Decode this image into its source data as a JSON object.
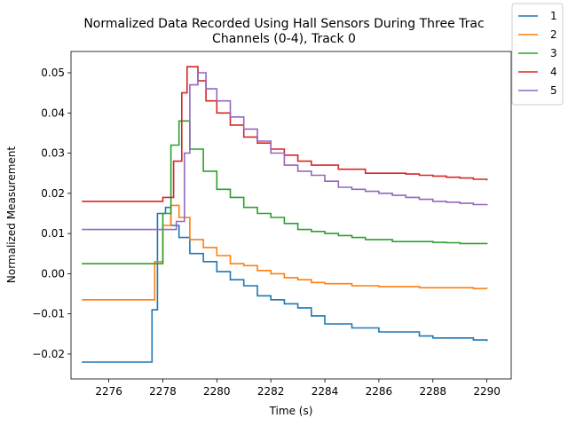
{
  "chart_data": {
    "type": "line",
    "title": "Normalized Data Recorded Using Hall Sensors During Three Trac",
    "subtitle": "Channels (0-4), Track 0",
    "xlabel": "Time (s)",
    "ylabel": "Normalized Measurement",
    "xlim": [
      2274.6,
      2290.9
    ],
    "ylim": [
      -0.0262,
      0.0553
    ],
    "xticks": [
      2276,
      2278,
      2280,
      2282,
      2284,
      2286,
      2288,
      2290
    ],
    "yticks": [
      -0.02,
      -0.01,
      0.0,
      0.01,
      0.02,
      0.03,
      0.04,
      0.05
    ],
    "xtick_labels": [
      "2276",
      "2278",
      "2280",
      "2282",
      "2284",
      "2286",
      "2288",
      "2290"
    ],
    "ytick_labels": [
      "−0.02",
      "−0.01",
      "0.00",
      "0.01",
      "0.02",
      "0.03",
      "0.04",
      "0.05"
    ],
    "grid": false,
    "legend": {
      "position": "top-right",
      "labels": [
        "1",
        "2",
        "3",
        "4",
        "5"
      ]
    },
    "series": [
      {
        "name": "1",
        "color": "#1f77b4",
        "x": [
          2275.0,
          2277.3,
          2277.6,
          2277.8,
          2278.1,
          2278.3,
          2278.6,
          2279.0,
          2279.5,
          2280.0,
          2280.5,
          2281.0,
          2281.5,
          2282.0,
          2282.5,
          2283.0,
          2283.5,
          2284.0,
          2284.5,
          2285.0,
          2285.5,
          2286.0,
          2286.5,
          2287.0,
          2287.5,
          2288.0,
          2288.5,
          2289.0,
          2289.5,
          2290.0
        ],
        "y": [
          -0.022,
          -0.022,
          -0.009,
          0.015,
          0.0165,
          0.012,
          0.009,
          0.005,
          0.003,
          0.0005,
          -0.0015,
          -0.003,
          -0.0055,
          -0.0065,
          -0.0075,
          -0.0085,
          -0.0105,
          -0.0125,
          -0.0125,
          -0.0135,
          -0.0135,
          -0.0145,
          -0.0145,
          -0.0145,
          -0.0155,
          -0.016,
          -0.016,
          -0.016,
          -0.0165,
          -0.0168
        ]
      },
      {
        "name": "2",
        "color": "#ff7f0e",
        "x": [
          2275.0,
          2277.4,
          2277.7,
          2278.0,
          2278.3,
          2278.6,
          2279.0,
          2279.5,
          2280.0,
          2280.5,
          2281.0,
          2281.5,
          2282.0,
          2282.5,
          2283.0,
          2283.5,
          2284.0,
          2284.5,
          2285.0,
          2285.5,
          2286.0,
          2286.5,
          2287.0,
          2287.5,
          2288.0,
          2288.5,
          2289.0,
          2289.5,
          2290.0
        ],
        "y": [
          -0.0065,
          -0.0065,
          0.003,
          0.012,
          0.017,
          0.014,
          0.0085,
          0.0065,
          0.0045,
          0.0025,
          0.002,
          0.0008,
          0.0,
          -0.001,
          -0.0015,
          -0.0022,
          -0.0025,
          -0.0025,
          -0.003,
          -0.003,
          -0.0032,
          -0.0032,
          -0.0032,
          -0.0035,
          -0.0035,
          -0.0035,
          -0.0035,
          -0.0037,
          -0.0038
        ]
      },
      {
        "name": "3",
        "color": "#2ca02c",
        "x": [
          2275.0,
          2277.7,
          2278.0,
          2278.3,
          2278.6,
          2279.0,
          2279.5,
          2280.0,
          2280.5,
          2281.0,
          2281.5,
          2282.0,
          2282.5,
          2283.0,
          2283.5,
          2284.0,
          2284.5,
          2285.0,
          2285.5,
          2286.0,
          2286.5,
          2287.0,
          2287.5,
          2288.0,
          2288.5,
          2289.0,
          2289.5,
          2290.0
        ],
        "y": [
          0.0025,
          0.0025,
          0.015,
          0.032,
          0.038,
          0.031,
          0.0255,
          0.021,
          0.019,
          0.0165,
          0.015,
          0.014,
          0.0125,
          0.011,
          0.0105,
          0.01,
          0.0095,
          0.009,
          0.0085,
          0.0085,
          0.008,
          0.008,
          0.008,
          0.0078,
          0.0077,
          0.0075,
          0.0075,
          0.0073
        ]
      },
      {
        "name": "4",
        "color": "#d62728",
        "x": [
          2275.0,
          2277.6,
          2278.0,
          2278.4,
          2278.7,
          2278.9,
          2279.1,
          2279.3,
          2279.6,
          2280.0,
          2280.5,
          2281.0,
          2281.5,
          2282.0,
          2282.5,
          2283.0,
          2283.5,
          2284.0,
          2284.5,
          2285.0,
          2285.5,
          2286.0,
          2286.5,
          2287.0,
          2287.5,
          2288.0,
          2288.5,
          2289.0,
          2289.5,
          2290.0
        ],
        "y": [
          0.018,
          0.018,
          0.019,
          0.028,
          0.045,
          0.0515,
          0.0515,
          0.048,
          0.043,
          0.04,
          0.037,
          0.034,
          0.0325,
          0.031,
          0.0295,
          0.028,
          0.027,
          0.027,
          0.026,
          0.026,
          0.025,
          0.025,
          0.025,
          0.0248,
          0.0245,
          0.0243,
          0.024,
          0.0238,
          0.0235,
          0.0232
        ]
      },
      {
        "name": "5",
        "color": "#9467bd",
        "x": [
          2275.0,
          2278.1,
          2278.5,
          2278.8,
          2279.0,
          2279.3,
          2279.6,
          2280.0,
          2280.5,
          2281.0,
          2281.5,
          2282.0,
          2282.5,
          2283.0,
          2283.5,
          2284.0,
          2284.5,
          2285.0,
          2285.5,
          2286.0,
          2286.5,
          2287.0,
          2287.5,
          2288.0,
          2288.5,
          2289.0,
          2289.5,
          2290.0
        ],
        "y": [
          0.011,
          0.011,
          0.013,
          0.03,
          0.047,
          0.05,
          0.046,
          0.043,
          0.039,
          0.036,
          0.033,
          0.03,
          0.027,
          0.0255,
          0.0245,
          0.023,
          0.0215,
          0.021,
          0.0205,
          0.02,
          0.0195,
          0.019,
          0.0185,
          0.018,
          0.0178,
          0.0175,
          0.0172,
          0.017
        ]
      }
    ]
  }
}
